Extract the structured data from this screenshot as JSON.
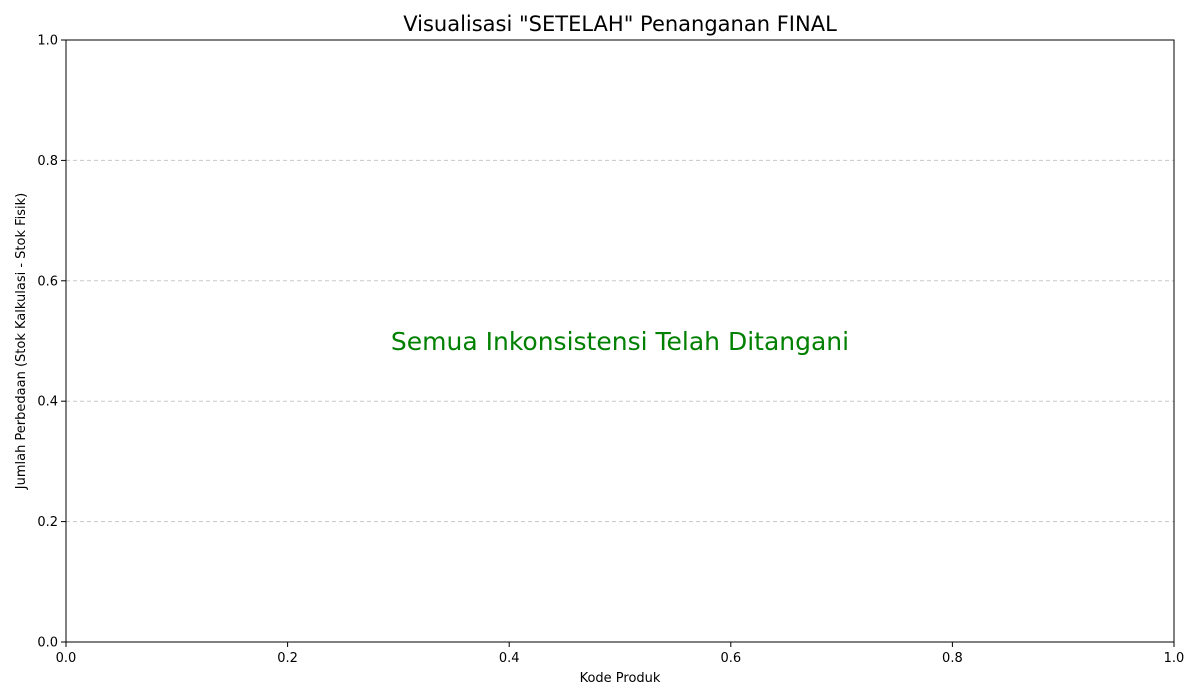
{
  "chart_data": {
    "type": "bar",
    "title": "Visualisasi \"SETELAH\" Penanganan FINAL",
    "xlabel": "Kode Produk",
    "ylabel": "Jumlah Perbedaan (Stok Kalkulasi - Stok Fisik)",
    "xlim": [
      0.0,
      1.0
    ],
    "ylim": [
      0.0,
      1.0
    ],
    "x_ticks": [
      "0.0",
      "0.2",
      "0.4",
      "0.6",
      "0.8",
      "1.0"
    ],
    "y_ticks": [
      "0.0",
      "0.2",
      "0.4",
      "0.6",
      "0.8",
      "1.0"
    ],
    "categories": [],
    "values": [],
    "grid": "y-axis dashed",
    "annotation": {
      "text": "Semua Inkonsistensi Telah Ditangani",
      "color": "#008000",
      "x": 0.5,
      "y": 0.5
    }
  }
}
